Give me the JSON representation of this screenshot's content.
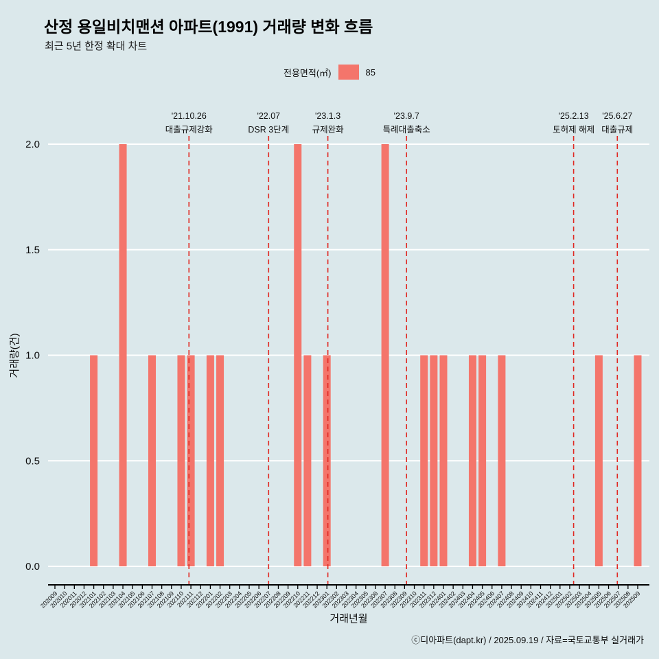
{
  "page": {
    "footer": "ⓒ디아파트(dapt.kr) / 2025.09.19 / 자료=국토교통부 실거래가"
  },
  "chart_data": {
    "type": "bar",
    "title": "산정 용일비치맨션 아파트(1991) 거래량 변화 흐름",
    "subtitle": "최근 5년 한정 확대 차트",
    "legend": {
      "label": "전용면적(㎡)",
      "value": "85"
    },
    "xlabel": "거래년월",
    "ylabel": "거래량(건)",
    "ylim": [
      0,
      2
    ],
    "yticks": [
      0.0,
      0.5,
      1.0,
      1.5,
      2.0
    ],
    "grid": true,
    "colors": {
      "bar": "#f4756b",
      "event_line": "#e02822",
      "grid": "#ffffff",
      "background": "#dbe8eb"
    },
    "categories": [
      "202009",
      "202010",
      "202011",
      "202012",
      "202101",
      "202102",
      "202103",
      "202104",
      "202105",
      "202106",
      "202107",
      "202108",
      "202109",
      "202110",
      "202111",
      "202112",
      "202201",
      "202202",
      "202203",
      "202204",
      "202205",
      "202206",
      "202207",
      "202208",
      "202209",
      "202210",
      "202211",
      "202212",
      "202301",
      "202302",
      "202303",
      "202304",
      "202305",
      "202306",
      "202307",
      "202308",
      "202309",
      "202310",
      "202311",
      "202312",
      "202401",
      "202402",
      "202403",
      "202404",
      "202405",
      "202406",
      "202407",
      "202408",
      "202409",
      "202410",
      "202411",
      "202412",
      "202501",
      "202502",
      "202503",
      "202504",
      "202505",
      "202506",
      "202507",
      "202508",
      "202509"
    ],
    "values": [
      0,
      0,
      0,
      0,
      1,
      0,
      0,
      2,
      0,
      0,
      1,
      0,
      0,
      1,
      1,
      0,
      1,
      1,
      0,
      0,
      0,
      0,
      0,
      0,
      0,
      2,
      1,
      0,
      1,
      0,
      0,
      0,
      0,
      0,
      2,
      0,
      0,
      0,
      1,
      1,
      1,
      0,
      0,
      1,
      1,
      0,
      1,
      0,
      0,
      0,
      0,
      0,
      0,
      0,
      0,
      0,
      1,
      0,
      0,
      0,
      1
    ],
    "events": [
      {
        "date": "'21.10.26",
        "label": "대출규제강화",
        "month_index": 13.8
      },
      {
        "date": "'22.07",
        "label": "DSR 3단계",
        "month_index": 22.0
      },
      {
        "date": "'23.1.3",
        "label": "규제완화",
        "month_index": 28.1
      },
      {
        "date": "'23.9.7",
        "label": "특례대출축소",
        "month_index": 36.2
      },
      {
        "date": "'25.2.13",
        "label": "토허제 해제",
        "month_index": 53.4
      },
      {
        "date": "'25.6.27",
        "label": "대출규제",
        "month_index": 57.9
      }
    ]
  }
}
